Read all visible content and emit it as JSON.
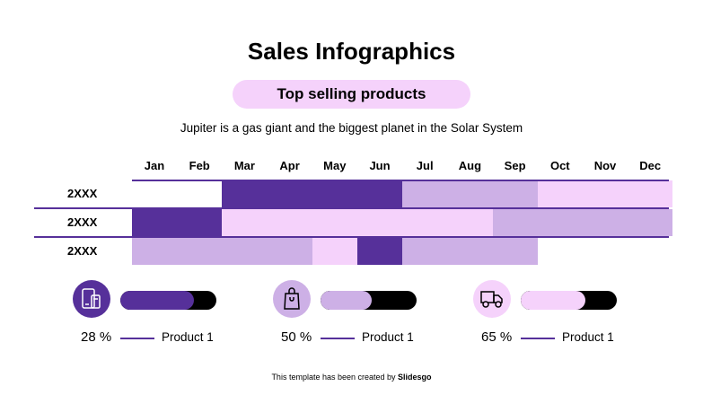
{
  "title": "Sales Infographics",
  "subtitle": "Top selling products",
  "description": "Jupiter is a gas giant and the biggest planet in the Solar System",
  "colors": {
    "dark": "#56309a",
    "medium": "#cdb0e6",
    "light": "#f5d2fb"
  },
  "months": [
    "Jan",
    "Feb",
    "Mar",
    "Apr",
    "May",
    "Jun",
    "Jul",
    "Aug",
    "Sep",
    "Oct",
    "Nov",
    "Dec"
  ],
  "rows": [
    {
      "label": "2XXX",
      "segments": [
        {
          "from": "Mar",
          "to": "Jun",
          "shade": "dark"
        },
        {
          "from": "Jul",
          "to": "Sep",
          "shade": "medium"
        },
        {
          "from": "Oct",
          "to": "Dec",
          "shade": "light"
        }
      ]
    },
    {
      "label": "2XXX",
      "segments": [
        {
          "from": "Jan",
          "to": "Feb",
          "shade": "dark"
        },
        {
          "from": "Mar",
          "to": "Aug",
          "shade": "light"
        },
        {
          "from": "Sep",
          "to": "Dec",
          "shade": "medium"
        }
      ]
    },
    {
      "label": "2XXX",
      "segments": [
        {
          "from": "Jan",
          "to": "Apr",
          "shade": "medium"
        },
        {
          "from": "May",
          "to": "May",
          "shade": "light"
        },
        {
          "from": "Jun",
          "to": "Jun",
          "shade": "dark"
        },
        {
          "from": "Jul",
          "to": "Sep",
          "shade": "medium"
        }
      ]
    }
  ],
  "products": [
    {
      "percent": "28 %",
      "label": "Product 1",
      "icon": "mobile-devices-icon",
      "shade": "dark",
      "bar_fill": 0.77
    },
    {
      "percent": "50 %",
      "label": "Product 1",
      "icon": "shopping-bag-icon",
      "shade": "medium",
      "bar_fill": 0.53
    },
    {
      "percent": "65 %",
      "label": "Product 1",
      "icon": "delivery-truck-icon",
      "shade": "light",
      "bar_fill": 0.67
    }
  ],
  "footer": {
    "prefix": "This template has been created by ",
    "brand": "Slidesgo"
  }
}
